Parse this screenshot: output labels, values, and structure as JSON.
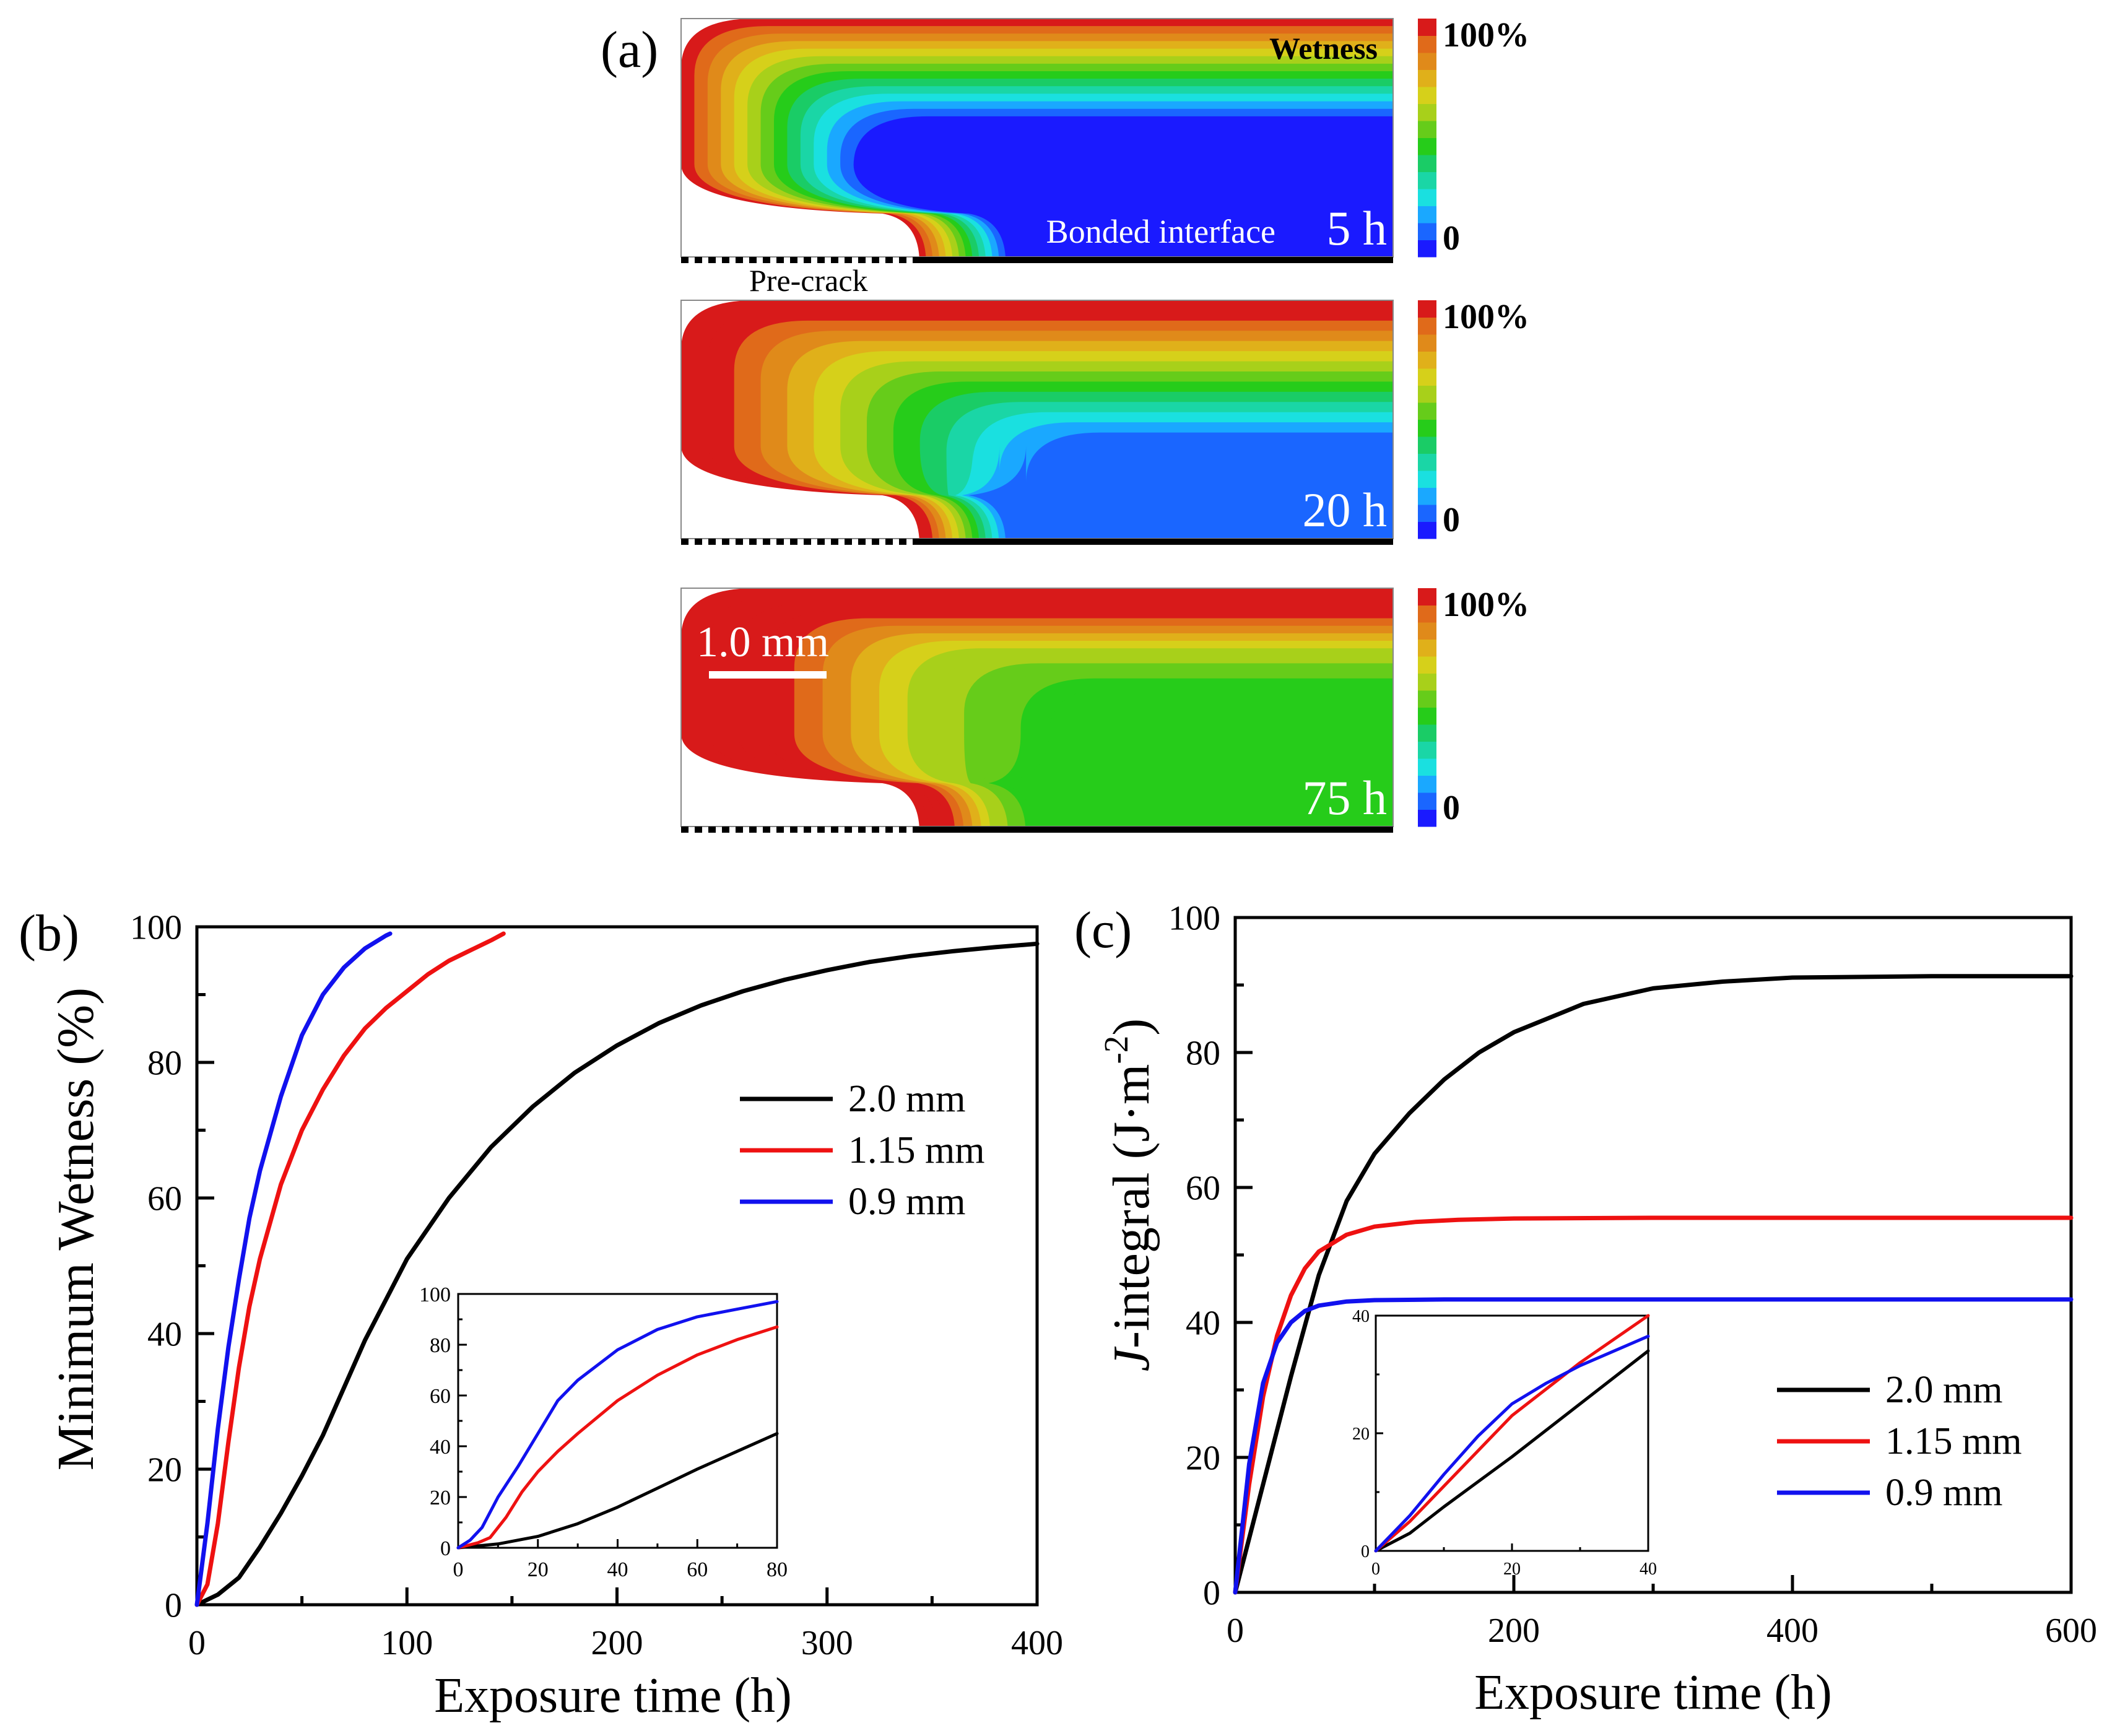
{
  "panel_a": {
    "label": "(a)",
    "wetness_label": "Wetness",
    "bonded_label": "Bonded interface",
    "precrack_label": "Pre-crack",
    "scalebar_label": "1.0 mm",
    "colorbar_max": "100%",
    "colorbar_min": "0",
    "snapshots": [
      {
        "time": "5 h"
      },
      {
        "time": "20 h"
      },
      {
        "time": "75 h"
      }
    ],
    "colors": [
      "#1a1aff",
      "#1a66ff",
      "#1aa8ff",
      "#1ae0e0",
      "#1ad6a6",
      "#1acc66",
      "#26cc1a",
      "#66cc1a",
      "#a8d01a",
      "#d6d01a",
      "#e0b01a",
      "#e08a1a",
      "#e06a1a",
      "#d81a1a"
    ]
  },
  "chart_data": [
    {
      "panel": "(b)",
      "type": "line",
      "title": "",
      "xlabel": "Exposure time (h)",
      "ylabel": "Minimum Wetness (%)",
      "xlim": [
        0,
        400
      ],
      "ylim": [
        0,
        100
      ],
      "xticks": [
        0,
        100,
        200,
        300,
        400
      ],
      "yticks": [
        0,
        20,
        40,
        60,
        80,
        100
      ],
      "legend_position": "right",
      "series": [
        {
          "name": "2.0 mm",
          "color": "#000000",
          "x": [
            0,
            10,
            20,
            30,
            40,
            50,
            60,
            70,
            80,
            90,
            100,
            120,
            140,
            160,
            180,
            200,
            220,
            240,
            260,
            280,
            300,
            320,
            340,
            360,
            380,
            400
          ],
          "y": [
            0,
            1.5,
            4,
            8.5,
            13.5,
            19,
            25,
            32,
            39,
            45,
            51,
            60,
            67.5,
            73.5,
            78.5,
            82.5,
            85.8,
            88.4,
            90.5,
            92.2,
            93.6,
            94.8,
            95.7,
            96.4,
            97,
            97.5
          ]
        },
        {
          "name": "1.15 mm",
          "color": "#ee1111",
          "x": [
            0,
            5,
            10,
            15,
            20,
            25,
            30,
            40,
            50,
            60,
            70,
            80,
            90,
            100,
            110,
            120,
            130,
            140,
            146
          ],
          "y": [
            0,
            3,
            12,
            24,
            35,
            44,
            51,
            62,
            70,
            76,
            81,
            85,
            88,
            90.5,
            93,
            95,
            96.5,
            98,
            99
          ]
        },
        {
          "name": "0.9 mm",
          "color": "#1111ee",
          "x": [
            0,
            5,
            10,
            15,
            20,
            25,
            30,
            40,
            50,
            60,
            70,
            80,
            90,
            92
          ],
          "y": [
            0,
            12,
            26,
            38,
            48,
            57,
            64,
            75,
            84,
            90,
            94,
            96.8,
            98.7,
            99
          ]
        }
      ],
      "inset": {
        "xlim": [
          0,
          80
        ],
        "ylim": [
          0,
          100
        ],
        "xticks": [
          0,
          20,
          40,
          60,
          80
        ],
        "yticks": [
          0,
          20,
          40,
          60,
          80,
          100
        ],
        "series": [
          {
            "name": "2.0 mm",
            "color": "#000000",
            "x": [
              0,
              10,
              20,
              30,
              40,
              50,
              60,
              70,
              80
            ],
            "y": [
              0,
              1.5,
              4.5,
              9.5,
              16,
              23.5,
              31,
              38,
              45
            ]
          },
          {
            "name": "1.15 mm",
            "color": "#ee1111",
            "x": [
              0,
              5,
              8,
              12,
              16,
              20,
              25,
              30,
              40,
              50,
              60,
              70,
              80
            ],
            "y": [
              0,
              2,
              4,
              12,
              22,
              30,
              38,
              45,
              58,
              68,
              76,
              82,
              87
            ]
          },
          {
            "name": "0.9 mm",
            "color": "#1111ee",
            "x": [
              0,
              3,
              6,
              10,
              15,
              20,
              25,
              30,
              40,
              50,
              60,
              70,
              80
            ],
            "y": [
              0,
              3,
              8,
              20,
              32,
              45,
              58,
              66,
              78,
              86,
              91,
              94,
              97
            ]
          }
        ]
      }
    },
    {
      "panel": "(c)",
      "type": "line",
      "title": "",
      "xlabel": "Exposure time (h)",
      "ylabel_italic": "J",
      "ylabel_rest": "-integral (J·m",
      "ylabel_sup": "-2",
      "ylabel_close": ")",
      "xlim": [
        0,
        600
      ],
      "ylim": [
        0,
        100
      ],
      "xticks": [
        0,
        200,
        400,
        600
      ],
      "yticks": [
        0,
        20,
        40,
        60,
        80,
        100
      ],
      "legend_position": "lower-right",
      "series": [
        {
          "name": "2.0 mm",
          "color": "#000000",
          "x": [
            0,
            20,
            40,
            60,
            80,
            100,
            125,
            150,
            175,
            200,
            250,
            300,
            350,
            400,
            500,
            600
          ],
          "y": [
            0,
            16,
            32,
            47,
            58,
            65,
            71,
            76,
            80,
            83,
            87.2,
            89.5,
            90.5,
            91.1,
            91.3,
            91.3
          ]
        },
        {
          "name": "1.15 mm",
          "color": "#ee1111",
          "x": [
            0,
            10,
            20,
            30,
            40,
            50,
            60,
            80,
            100,
            130,
            160,
            200,
            300,
            400,
            600
          ],
          "y": [
            0,
            16,
            29,
            38,
            44,
            48,
            50.5,
            53,
            54.2,
            54.9,
            55.2,
            55.4,
            55.5,
            55.5,
            55.5
          ]
        },
        {
          "name": "0.9 mm",
          "color": "#1111ee",
          "x": [
            0,
            10,
            20,
            30,
            40,
            50,
            60,
            80,
            100,
            150,
            200,
            300,
            600
          ],
          "y": [
            0,
            19,
            31,
            37,
            40,
            41.7,
            42.5,
            43.1,
            43.3,
            43.4,
            43.4,
            43.4,
            43.4
          ]
        }
      ],
      "inset": {
        "xlim": [
          0,
          40
        ],
        "ylim": [
          0,
          40
        ],
        "xticks": [
          0,
          20,
          40
        ],
        "yticks": [
          0,
          20,
          40
        ],
        "series": [
          {
            "name": "2.0 mm",
            "color": "#000000",
            "x": [
              0,
              5,
              10,
              20,
              30,
              40
            ],
            "y": [
              0,
              3,
              7.5,
              16,
              25,
              34
            ]
          },
          {
            "name": "1.15 mm",
            "color": "#ee1111",
            "x": [
              0,
              5,
              10,
              15,
              20,
              30,
              40
            ],
            "y": [
              0,
              5,
              11,
              17,
              23,
              32,
              40
            ]
          },
          {
            "name": "0.9 mm",
            "color": "#1111ee",
            "x": [
              0,
              5,
              10,
              15,
              20,
              25,
              30,
              40
            ],
            "y": [
              0,
              6,
              13,
              19.5,
              25,
              28.5,
              31.5,
              36.5
            ]
          }
        ]
      }
    }
  ]
}
